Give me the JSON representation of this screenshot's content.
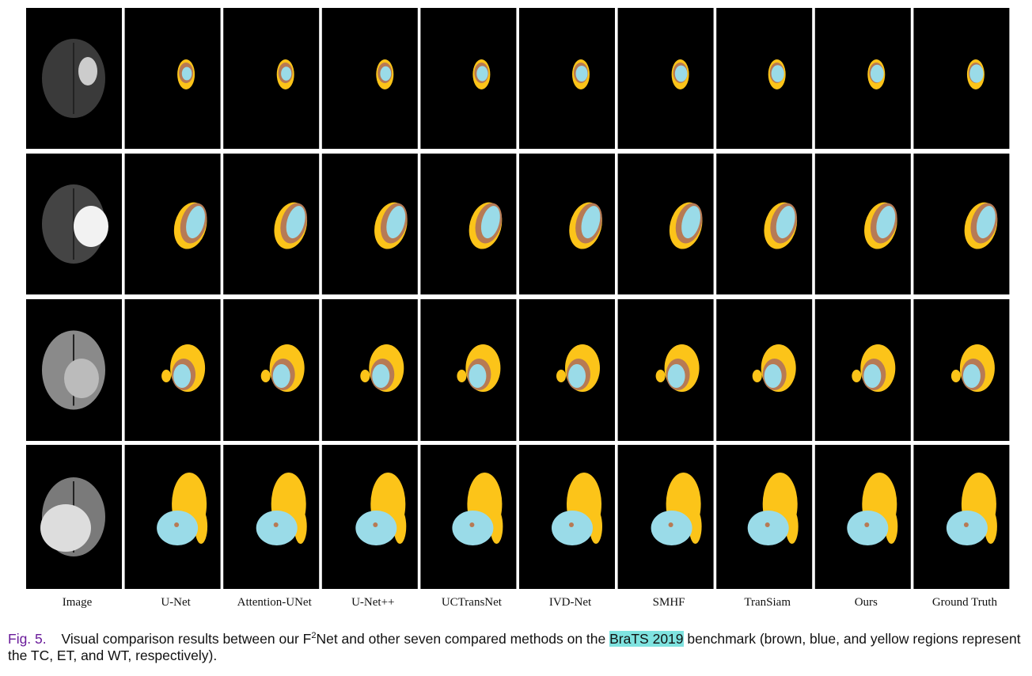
{
  "figure": {
    "columns": [
      "Image",
      "U-Net",
      "Attention-UNet",
      "U-Net++",
      "UCTransNet",
      "IVD-Net",
      "SMHF",
      "TranSiam",
      "Ours",
      "Ground Truth"
    ]
  },
  "caption": {
    "label": "Fig. 5.",
    "text_before": "Visual comparison results between our F",
    "superscript": "2",
    "text_after": "Net and other seven compared methods on the",
    "highlight": "BraTS 2019",
    "text_end": "benchmark (brown, blue, and yellow regions represent the TC, ET, and WT, respectively)."
  }
}
